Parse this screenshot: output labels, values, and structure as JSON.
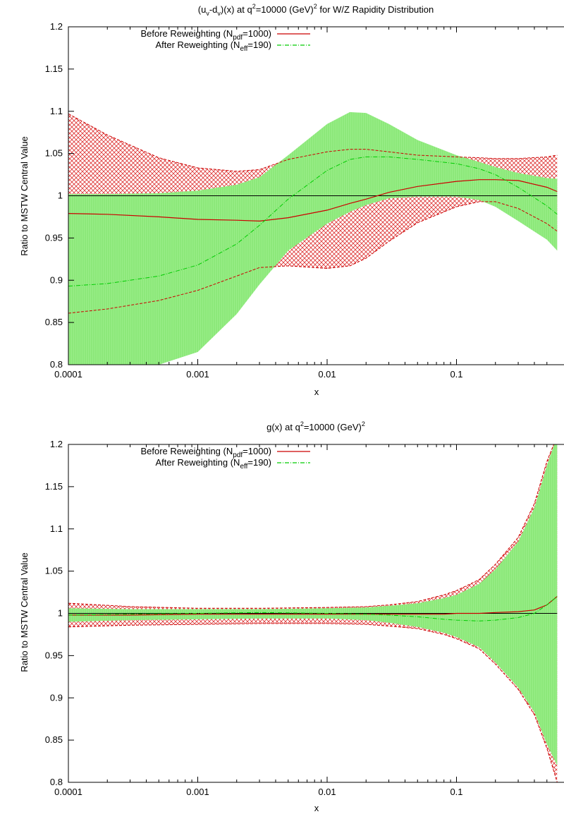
{
  "chart_data": [
    {
      "type": "line",
      "title": "(u_v-d_v)(x) at q^2=10000 (GeV)^2 for W/Z Rapidity Distribution",
      "title_parts": {
        "a": "(u",
        "sub1": "v",
        "b": "-d",
        "sub2": "v",
        "c": ")(x) at q",
        "sup": "2",
        "d": "=10000 (GeV)",
        "sup2": "2",
        "e": " for W/Z Rapidity Distribution"
      },
      "xlabel": "x",
      "ylabel": "Ratio to MSTW Central Value",
      "x_scale": "log",
      "xlim": [
        0.0001,
        0.6
      ],
      "ylim": [
        0.8,
        1.2
      ],
      "x_ticks": [
        {
          "value": 0.0001,
          "label": "0.0001"
        },
        {
          "value": 0.001,
          "label": "0.001"
        },
        {
          "value": 0.01,
          "label": "0.01"
        },
        {
          "value": 0.1,
          "label": "0.1"
        }
      ],
      "y_ticks": [
        {
          "value": 0.8,
          "label": "0.8"
        },
        {
          "value": 0.85,
          "label": "0.85"
        },
        {
          "value": 0.9,
          "label": "0.9"
        },
        {
          "value": 0.95,
          "label": "0.95"
        },
        {
          "value": 1.0,
          "label": "1"
        },
        {
          "value": 1.05,
          "label": "1.05"
        },
        {
          "value": 1.1,
          "label": "1.1"
        },
        {
          "value": 1.15,
          "label": "1.15"
        },
        {
          "value": 1.2,
          "label": "1.2"
        }
      ],
      "legend": [
        {
          "pre": "Before Reweighting (N",
          "sub": "pdf",
          "post": "=1000)",
          "color": "#cc0000",
          "style": "solid"
        },
        {
          "pre": "After Reweighting (N",
          "sub": "eff",
          "post": "=190)",
          "color": "#00cc00",
          "style": "dashdot"
        }
      ],
      "legend_position": "top-left",
      "reference_line": 1.0,
      "x": [
        0.0001,
        0.0002,
        0.0005,
        0.001,
        0.002,
        0.003,
        0.005,
        0.01,
        0.015,
        0.02,
        0.03,
        0.05,
        0.1,
        0.15,
        0.2,
        0.3,
        0.5,
        0.6
      ],
      "series": [
        {
          "name": "Before Reweighting",
          "color": "#cc0000",
          "central": [
            0.979,
            0.978,
            0.975,
            0.972,
            0.971,
            0.97,
            0.974,
            0.983,
            0.991,
            0.996,
            1.004,
            1.011,
            1.017,
            1.019,
            1.019,
            1.018,
            1.01,
            1.005
          ],
          "upper": [
            1.097,
            1.072,
            1.045,
            1.033,
            1.029,
            1.031,
            1.043,
            1.052,
            1.055,
            1.055,
            1.052,
            1.048,
            1.046,
            1.045,
            1.044,
            1.044,
            1.046,
            1.048
          ],
          "lower": [
            0.861,
            0.866,
            0.876,
            0.888,
            0.905,
            0.915,
            0.917,
            0.914,
            0.917,
            0.926,
            0.946,
            0.968,
            0.987,
            0.993,
            0.993,
            0.985,
            0.967,
            0.958
          ]
        },
        {
          "name": "After Reweighting",
          "color": "#00cc00",
          "central": [
            0.893,
            0.896,
            0.905,
            0.918,
            0.943,
            0.965,
            0.996,
            1.03,
            1.043,
            1.046,
            1.046,
            1.043,
            1.038,
            1.032,
            1.025,
            1.01,
            0.988,
            0.978
          ],
          "upper": [
            1.002,
            1.002,
            1.003,
            1.006,
            1.013,
            1.022,
            1.048,
            1.085,
            1.099,
            1.098,
            1.085,
            1.066,
            1.048,
            1.04,
            1.034,
            1.027,
            1.021,
            1.02
          ],
          "lower": [
            0.784,
            0.79,
            0.8,
            0.815,
            0.86,
            0.895,
            0.935,
            0.967,
            0.981,
            0.989,
            0.997,
            0.999,
            0.999,
            0.995,
            0.987,
            0.97,
            0.948,
            0.935
          ]
        }
      ]
    },
    {
      "type": "line",
      "title": "g(x) at q^2=10000 (GeV)^2",
      "title_parts": {
        "a": "g(x) at q",
        "sup": "2",
        "d": "=10000 (GeV)",
        "sup2": "2"
      },
      "xlabel": "x",
      "ylabel": "Ratio to MSTW Central Value",
      "x_scale": "log",
      "xlim": [
        0.0001,
        0.6
      ],
      "ylim": [
        0.8,
        1.2
      ],
      "x_ticks": [
        {
          "value": 0.0001,
          "label": "0.0001"
        },
        {
          "value": 0.001,
          "label": "0.001"
        },
        {
          "value": 0.01,
          "label": "0.01"
        },
        {
          "value": 0.1,
          "label": "0.1"
        }
      ],
      "y_ticks": [
        {
          "value": 0.8,
          "label": "0.8"
        },
        {
          "value": 0.85,
          "label": "0.85"
        },
        {
          "value": 0.9,
          "label": "0.9"
        },
        {
          "value": 0.95,
          "label": "0.95"
        },
        {
          "value": 1.0,
          "label": "1"
        },
        {
          "value": 1.05,
          "label": "1.05"
        },
        {
          "value": 1.1,
          "label": "1.1"
        },
        {
          "value": 1.15,
          "label": "1.15"
        },
        {
          "value": 1.2,
          "label": "1.2"
        }
      ],
      "legend": [
        {
          "pre": "Before Reweighting (N",
          "sub": "pdf",
          "post": "=1000)",
          "color": "#cc0000",
          "style": "solid"
        },
        {
          "pre": "After Reweighting (N",
          "sub": "eff",
          "post": "=190)",
          "color": "#00cc00",
          "style": "dashdot"
        }
      ],
      "legend_position": "top-left",
      "reference_line": 1.0,
      "x": [
        0.0001,
        0.0003,
        0.001,
        0.003,
        0.01,
        0.02,
        0.03,
        0.05,
        0.08,
        0.1,
        0.15,
        0.2,
        0.3,
        0.4,
        0.5,
        0.6
      ],
      "series": [
        {
          "name": "Before Reweighting",
          "color": "#cc0000",
          "central": [
            0.998,
            0.998,
            0.999,
            0.999,
            0.999,
            0.999,
            0.999,
            0.999,
            0.999,
            1.0,
            1.0,
            1.001,
            1.002,
            1.004,
            1.01,
            1.02
          ],
          "upper": [
            1.012,
            1.008,
            1.006,
            1.006,
            1.007,
            1.008,
            1.01,
            1.014,
            1.022,
            1.027,
            1.04,
            1.058,
            1.09,
            1.13,
            1.18,
            1.21
          ],
          "lower": [
            0.984,
            0.986,
            0.987,
            0.988,
            0.988,
            0.987,
            0.985,
            0.982,
            0.975,
            0.97,
            0.958,
            0.94,
            0.91,
            0.88,
            0.84,
            0.8
          ]
        },
        {
          "name": "After Reweighting",
          "color": "#00cc00",
          "central": [
            0.998,
            0.999,
            1.0,
            1.001,
            1.0,
            0.999,
            0.998,
            0.996,
            0.993,
            0.992,
            0.991,
            0.992,
            0.995,
            1.0,
            1.01,
            1.02
          ],
          "upper": [
            1.006,
            1.005,
            1.005,
            1.005,
            1.006,
            1.007,
            1.009,
            1.012,
            1.018,
            1.022,
            1.035,
            1.052,
            1.085,
            1.125,
            1.175,
            1.21
          ],
          "lower": [
            0.99,
            0.992,
            0.993,
            0.994,
            0.994,
            0.992,
            0.989,
            0.984,
            0.977,
            0.972,
            0.96,
            0.942,
            0.912,
            0.883,
            0.845,
            0.82
          ]
        }
      ]
    }
  ]
}
